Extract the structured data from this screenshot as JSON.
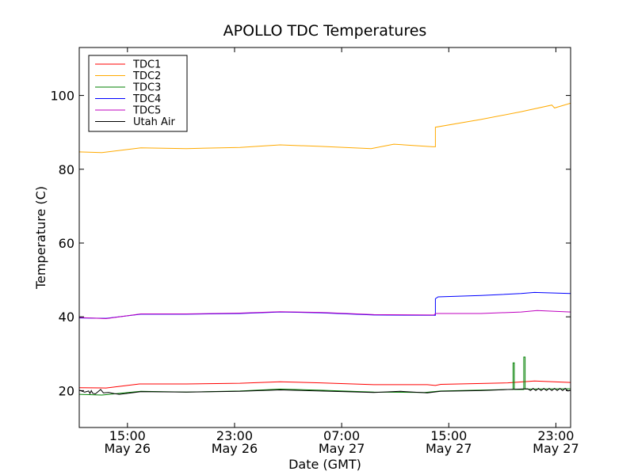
{
  "chart_data": {
    "type": "line",
    "title": "APOLLO TDC Temperatures",
    "xlabel": "Date (GMT)",
    "ylabel": "Temperature (C)",
    "ylim": [
      10,
      113
    ],
    "xlim_hours": [
      0,
      36.7
    ],
    "yticks": [
      20,
      40,
      60,
      80,
      100
    ],
    "xticks": [
      {
        "pos_hours": 3.6,
        "time": "15:00",
        "date": "May 26"
      },
      {
        "pos_hours": 11.6,
        "time": "23:00",
        "date": "May 26"
      },
      {
        "pos_hours": 19.6,
        "time": "07:00",
        "date": "May 27"
      },
      {
        "pos_hours": 27.6,
        "time": "15:00",
        "date": "May 27"
      },
      {
        "pos_hours": 35.6,
        "time": "23:00",
        "date": "May 27"
      }
    ],
    "legend_position": "upper-left",
    "series": [
      {
        "name": "TDC1",
        "color": "#ff0000",
        "points": [
          [
            0,
            20.8
          ],
          [
            2,
            20.7
          ],
          [
            4.5,
            21.8
          ],
          [
            8,
            21.8
          ],
          [
            12,
            22.0
          ],
          [
            15,
            22.4
          ],
          [
            18,
            22.1
          ],
          [
            22,
            21.6
          ],
          [
            26,
            21.6
          ],
          [
            26.6,
            21.4
          ],
          [
            27,
            21.7
          ],
          [
            32,
            22.1
          ],
          [
            34,
            22.6
          ],
          [
            36.7,
            22.2
          ]
        ]
      },
      {
        "name": "TDC2",
        "color": "#ffaa00",
        "points": [
          [
            0,
            84.7
          ],
          [
            1.7,
            84.5
          ],
          [
            4.6,
            85.8
          ],
          [
            8,
            85.6
          ],
          [
            12,
            85.9
          ],
          [
            15,
            86.6
          ],
          [
            18,
            86.2
          ],
          [
            21.8,
            85.6
          ],
          [
            23.5,
            86.8
          ],
          [
            26.4,
            86.1
          ],
          [
            26.6,
            86.1
          ],
          [
            26.6,
            91.4
          ],
          [
            30,
            93.5
          ],
          [
            33,
            95.6
          ],
          [
            35.3,
            97.4
          ],
          [
            35.5,
            96.6
          ],
          [
            36.7,
            97.9
          ]
        ]
      },
      {
        "name": "TDC3",
        "color": "#008000",
        "points": [
          [
            0,
            19.0
          ],
          [
            1.7,
            18.8
          ],
          [
            4.6,
            19.8
          ],
          [
            8,
            19.6
          ],
          [
            12,
            19.9
          ],
          [
            15,
            20.4
          ],
          [
            18,
            20.1
          ],
          [
            22,
            19.6
          ],
          [
            25.8,
            19.5
          ],
          [
            27,
            19.9
          ],
          [
            32,
            20.3
          ],
          [
            32.4,
            20.3
          ],
          [
            32.4,
            27.5
          ],
          [
            32.5,
            27.5
          ],
          [
            32.5,
            20.3
          ],
          [
            33.2,
            20.3
          ],
          [
            33.2,
            29.1
          ],
          [
            33.3,
            29.1
          ],
          [
            33.3,
            20.4
          ],
          [
            36.7,
            20.5
          ]
        ]
      },
      {
        "name": "TDC4",
        "color": "#0000ff",
        "points": [
          [
            0,
            39.7
          ],
          [
            2,
            39.6
          ],
          [
            4.6,
            40.7
          ],
          [
            8,
            40.7
          ],
          [
            12,
            40.9
          ],
          [
            15,
            41.3
          ],
          [
            18,
            41.1
          ],
          [
            22,
            40.5
          ],
          [
            26.5,
            40.4
          ],
          [
            26.6,
            40.4
          ],
          [
            26.6,
            44.9
          ],
          [
            26.8,
            45.4
          ],
          [
            30,
            45.8
          ],
          [
            33,
            46.3
          ],
          [
            34,
            46.6
          ],
          [
            36.7,
            46.3
          ]
        ]
      },
      {
        "name": "TDC5",
        "color": "#bf00bf",
        "points": [
          [
            0,
            39.8
          ],
          [
            2,
            39.5
          ],
          [
            4.6,
            40.8
          ],
          [
            8,
            40.8
          ],
          [
            12,
            41.0
          ],
          [
            15,
            41.4
          ],
          [
            18,
            41.2
          ],
          [
            22,
            40.6
          ],
          [
            26.5,
            40.5
          ],
          [
            26.6,
            40.9
          ],
          [
            30,
            40.9
          ],
          [
            33,
            41.3
          ],
          [
            34.2,
            41.7
          ],
          [
            36.7,
            41.3
          ]
        ]
      },
      {
        "name": "Utah Air",
        "color": "#000000",
        "points": [
          [
            0,
            20.1
          ],
          [
            0.4,
            19.6
          ],
          [
            0.7,
            19.9
          ],
          [
            0.8,
            19.2
          ],
          [
            0.9,
            20.0
          ],
          [
            1.0,
            19.3
          ],
          [
            1.2,
            19.1
          ],
          [
            1.6,
            20.3
          ],
          [
            1.8,
            19.4
          ],
          [
            2.2,
            19.5
          ],
          [
            2.6,
            19.2
          ],
          [
            3.0,
            19.0
          ],
          [
            4.6,
            19.7
          ],
          [
            8,
            19.6
          ],
          [
            12,
            19.8
          ],
          [
            15,
            20.2
          ],
          [
            18,
            19.9
          ],
          [
            22,
            19.5
          ],
          [
            24,
            19.8
          ],
          [
            26,
            19.4
          ],
          [
            27,
            19.8
          ],
          [
            30,
            20.0
          ],
          [
            32,
            20.3
          ],
          [
            33.5,
            20.5
          ],
          [
            33.7,
            20.0
          ],
          [
            33.9,
            20.6
          ],
          [
            34.1,
            20.0
          ],
          [
            34.3,
            20.6
          ],
          [
            34.5,
            20.0
          ],
          [
            34.7,
            20.6
          ],
          [
            34.9,
            20.0
          ],
          [
            35.1,
            20.6
          ],
          [
            35.3,
            20.0
          ],
          [
            35.5,
            20.6
          ],
          [
            35.7,
            20.0
          ],
          [
            35.9,
            20.6
          ],
          [
            36.1,
            20.0
          ],
          [
            36.3,
            20.6
          ],
          [
            36.5,
            19.9
          ],
          [
            36.7,
            20.1
          ]
        ]
      }
    ]
  }
}
